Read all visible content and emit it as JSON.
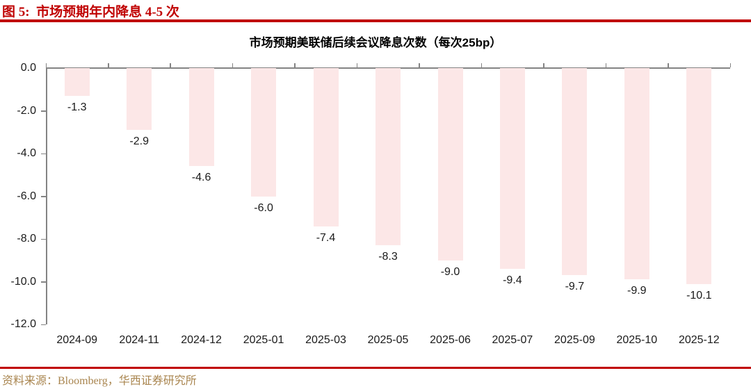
{
  "header": {
    "title": "图 5:  市场预期年内降息 4-5 次"
  },
  "footer": {
    "source": "资料来源：Bloomberg，华西证券研究所"
  },
  "colors": {
    "accent_red": "#c00000",
    "bar_fill": "#fce7e7",
    "axis_gray": "#848484",
    "source_brown": "#a9854f"
  },
  "chart_data": {
    "type": "bar",
    "title": "市场预期美联储后续会议降息次数（每次25bp）",
    "categories": [
      "2024-09",
      "2024-11",
      "2024-12",
      "2025-01",
      "2025-03",
      "2025-05",
      "2025-06",
      "2025-07",
      "2025-09",
      "2025-10",
      "2025-12"
    ],
    "values": [
      -1.3,
      -2.9,
      -4.6,
      -6.0,
      -7.4,
      -8.3,
      -9.0,
      -9.4,
      -9.7,
      -9.9,
      -10.1
    ],
    "data_labels": [
      "-1.3",
      "-2.9",
      "-4.6",
      "-6.0",
      "-7.4",
      "-8.3",
      "-9.0",
      "-9.4",
      "-9.7",
      "-9.9",
      "-10.1"
    ],
    "xlabel": "",
    "ylabel": "",
    "ylim": [
      -12,
      0
    ],
    "y_tick_labels": [
      "0.0",
      "-2.0",
      "-4.0",
      "-6.0",
      "-8.0",
      "-10.0",
      "-12.0"
    ],
    "y_tick_step": 2,
    "grid": false,
    "legend_position": "none"
  }
}
